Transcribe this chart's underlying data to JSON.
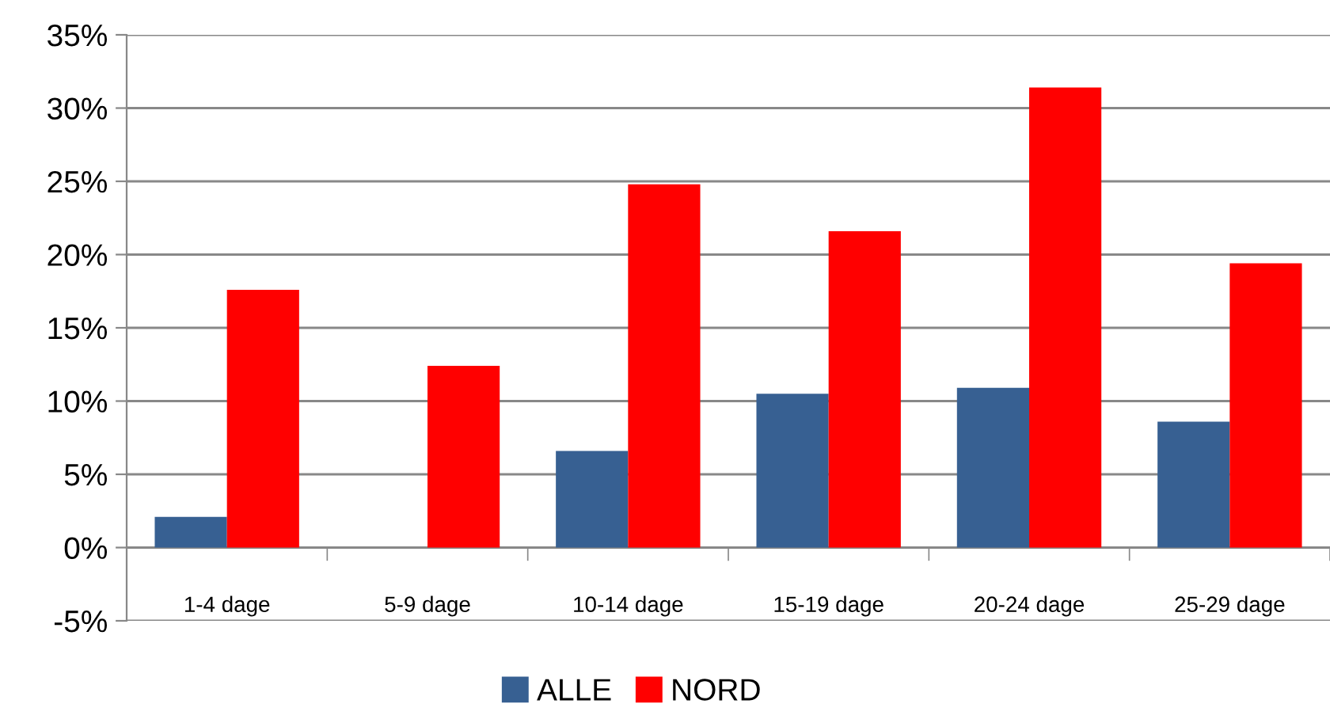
{
  "chart_data": {
    "type": "bar",
    "categories": [
      "1-4 dage",
      "5-9 dage",
      "10-14 dage",
      "15-19 dage",
      "20-24 dage",
      "25-29 dage"
    ],
    "series": [
      {
        "name": "ALLE",
        "color": "#376092",
        "values": [
          2.1,
          0,
          6.6,
          10.5,
          10.9,
          8.6
        ]
      },
      {
        "name": "NORD",
        "color": "#ff0000",
        "values": [
          17.6,
          12.4,
          24.8,
          21.6,
          31.4,
          19.4
        ]
      }
    ],
    "ylim": [
      -5,
      35
    ],
    "yticks": [
      {
        "value": -5,
        "label": "-5%"
      },
      {
        "value": 0,
        "label": "0%"
      },
      {
        "value": 5,
        "label": "5%"
      },
      {
        "value": 10,
        "label": "10%"
      },
      {
        "value": 15,
        "label": "15%"
      },
      {
        "value": 20,
        "label": "20%"
      },
      {
        "value": 25,
        "label": "25%"
      },
      {
        "value": 30,
        "label": "30%"
      },
      {
        "value": 35,
        "label": "35%"
      }
    ],
    "grid": "y",
    "legend": "bottom"
  }
}
